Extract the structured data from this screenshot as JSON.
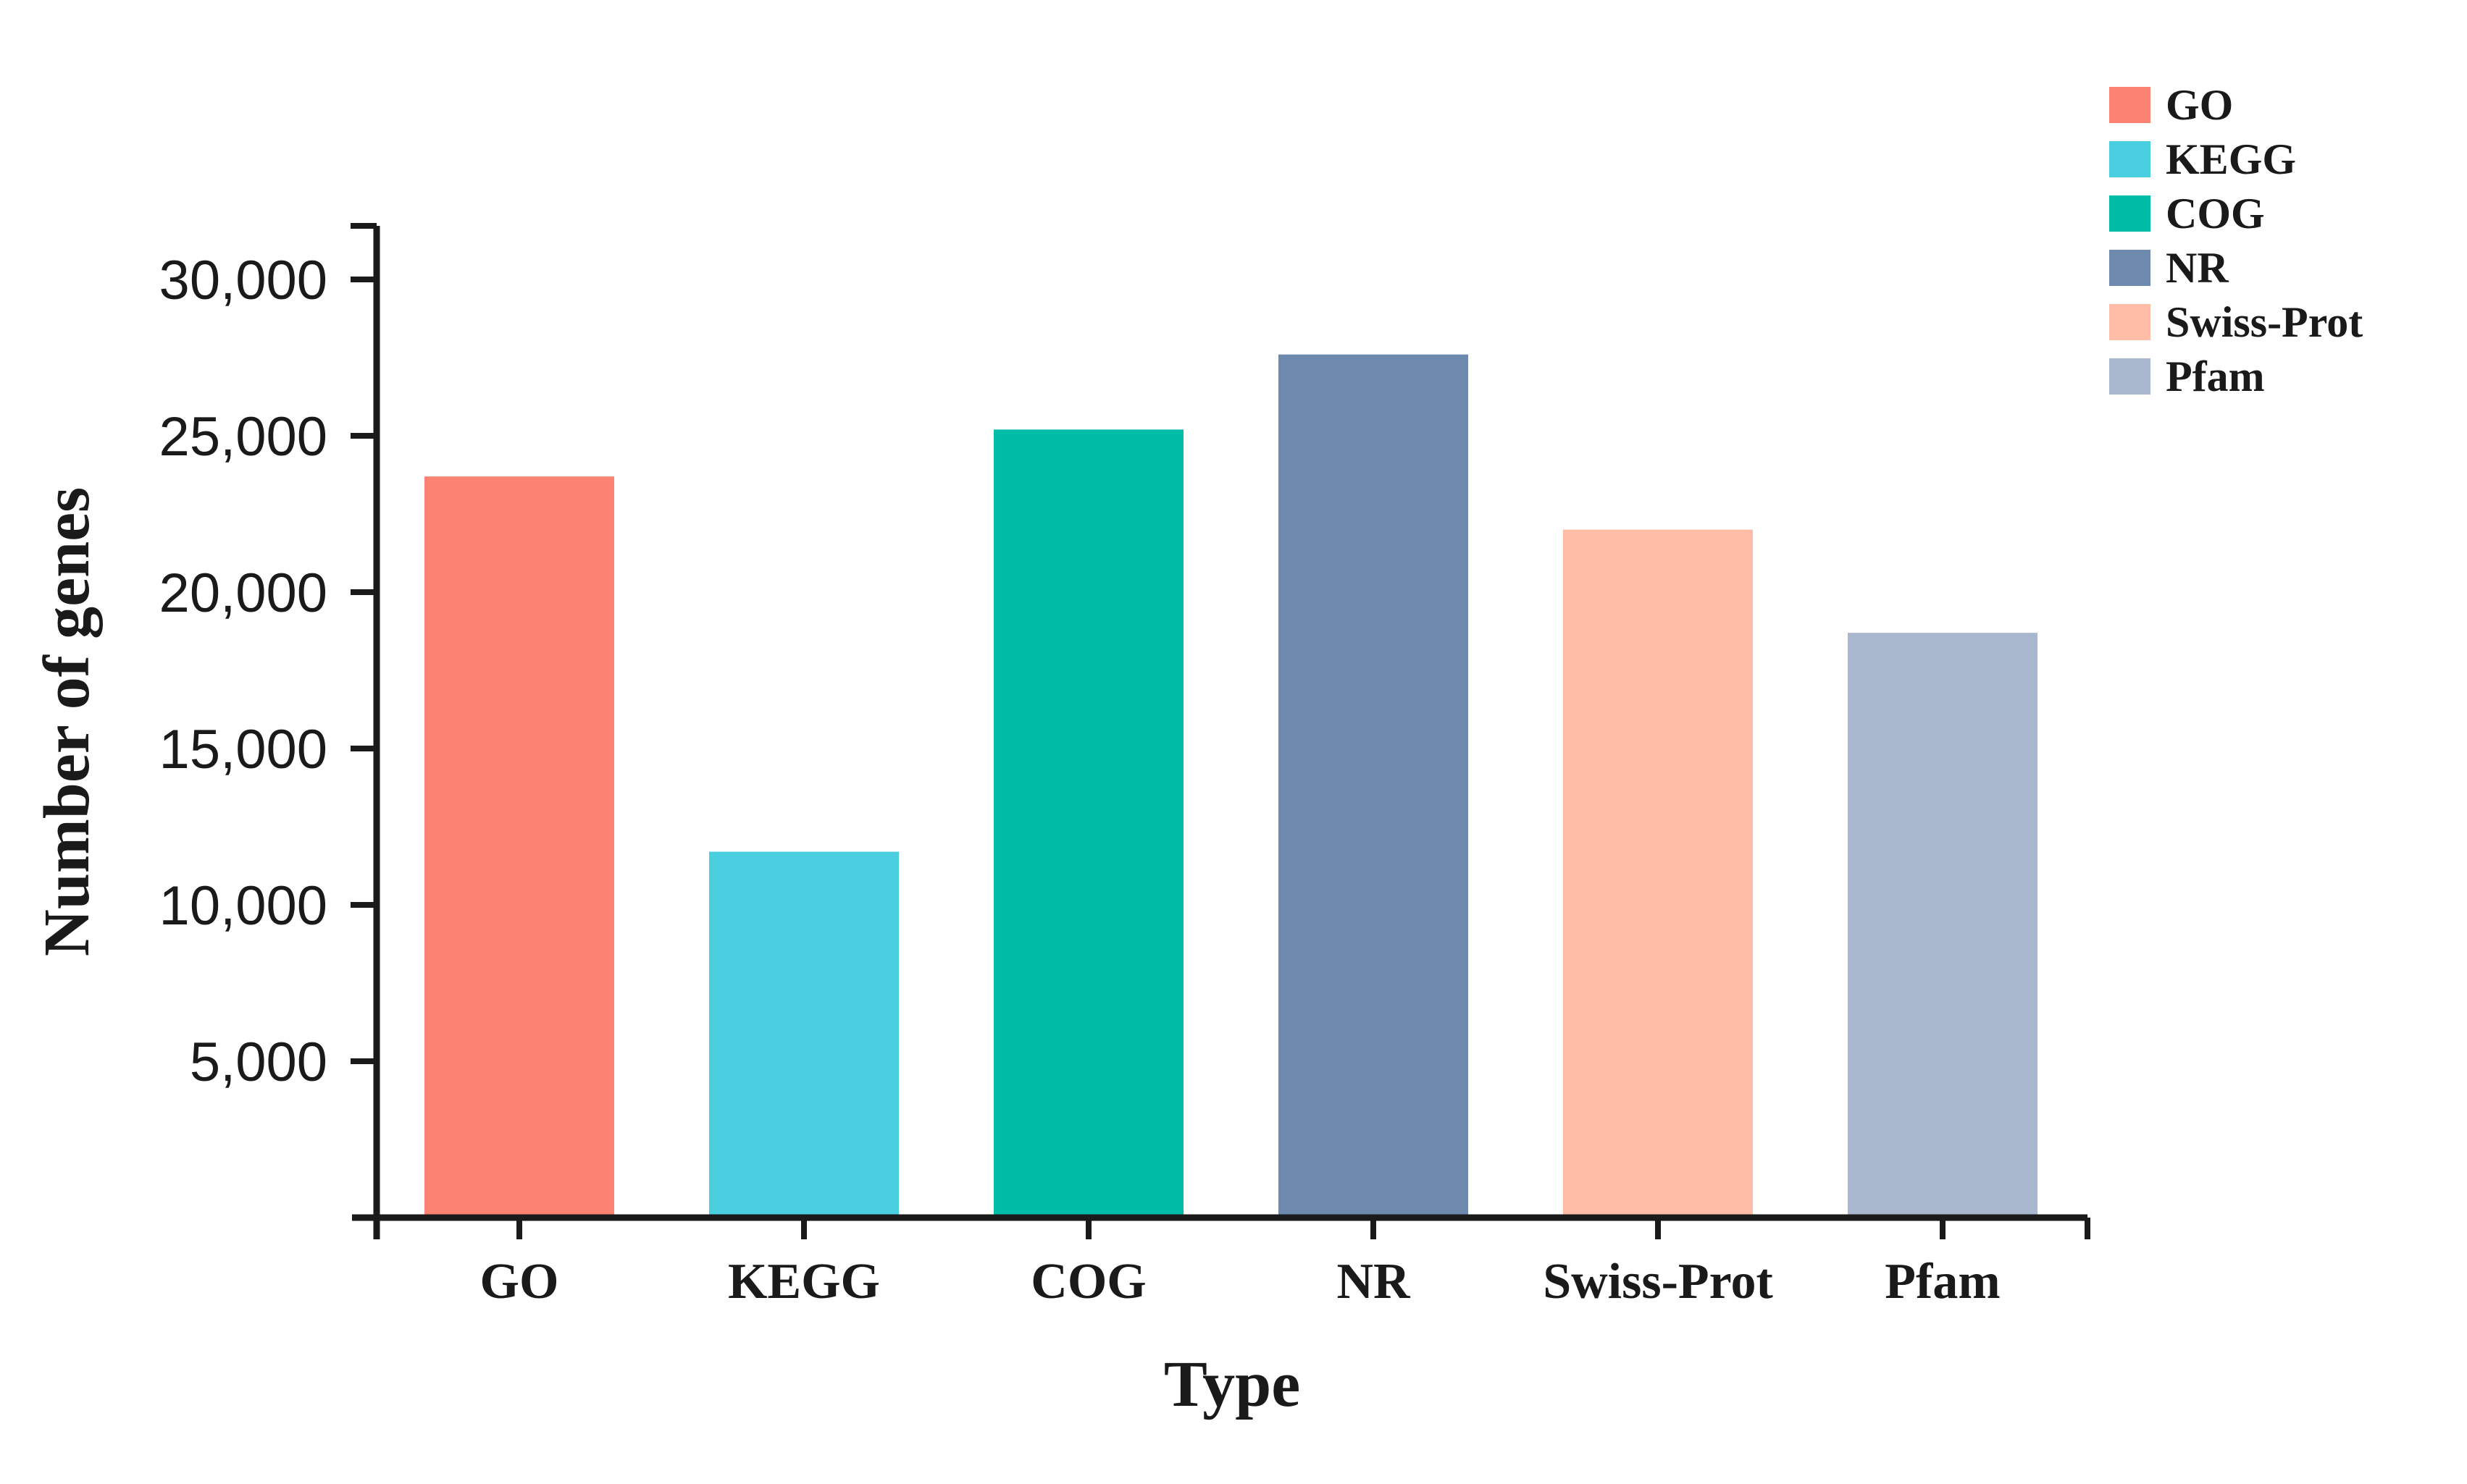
{
  "chart_data": {
    "type": "bar",
    "title": "",
    "xlabel": "Type",
    "ylabel": "Number of genes",
    "categories": [
      "GO",
      "KEGG",
      "COG",
      "NR",
      "Swiss-Prot",
      "Pfam"
    ],
    "values": [
      23700,
      11700,
      25200,
      27600,
      22000,
      18700
    ],
    "colors": [
      "#FC8372",
      "#4ACFE0",
      "#00BDA8",
      "#6E89AE",
      "#FFBDA8",
      "#A8B6CE"
    ],
    "yticks": [
      5000,
      10000,
      15000,
      20000,
      25000,
      30000
    ],
    "yticklabels": [
      "5,000",
      "10,000",
      "15,000",
      "20,000",
      "25,000",
      "30,000"
    ],
    "ylim": [
      0,
      31700
    ],
    "grid": false,
    "axis_color": "#1a1a1a",
    "legend": {
      "position": "top-right",
      "entries": [
        {
          "label": "GO",
          "color": "#FC8372"
        },
        {
          "label": "KEGG",
          "color": "#4ACFE0"
        },
        {
          "label": "COG",
          "color": "#00BDA8"
        },
        {
          "label": "NR",
          "color": "#6E89AE"
        },
        {
          "label": "Swiss-Prot",
          "color": "#FFBDA8"
        },
        {
          "label": "Pfam",
          "color": "#A8B6CE"
        }
      ]
    }
  }
}
